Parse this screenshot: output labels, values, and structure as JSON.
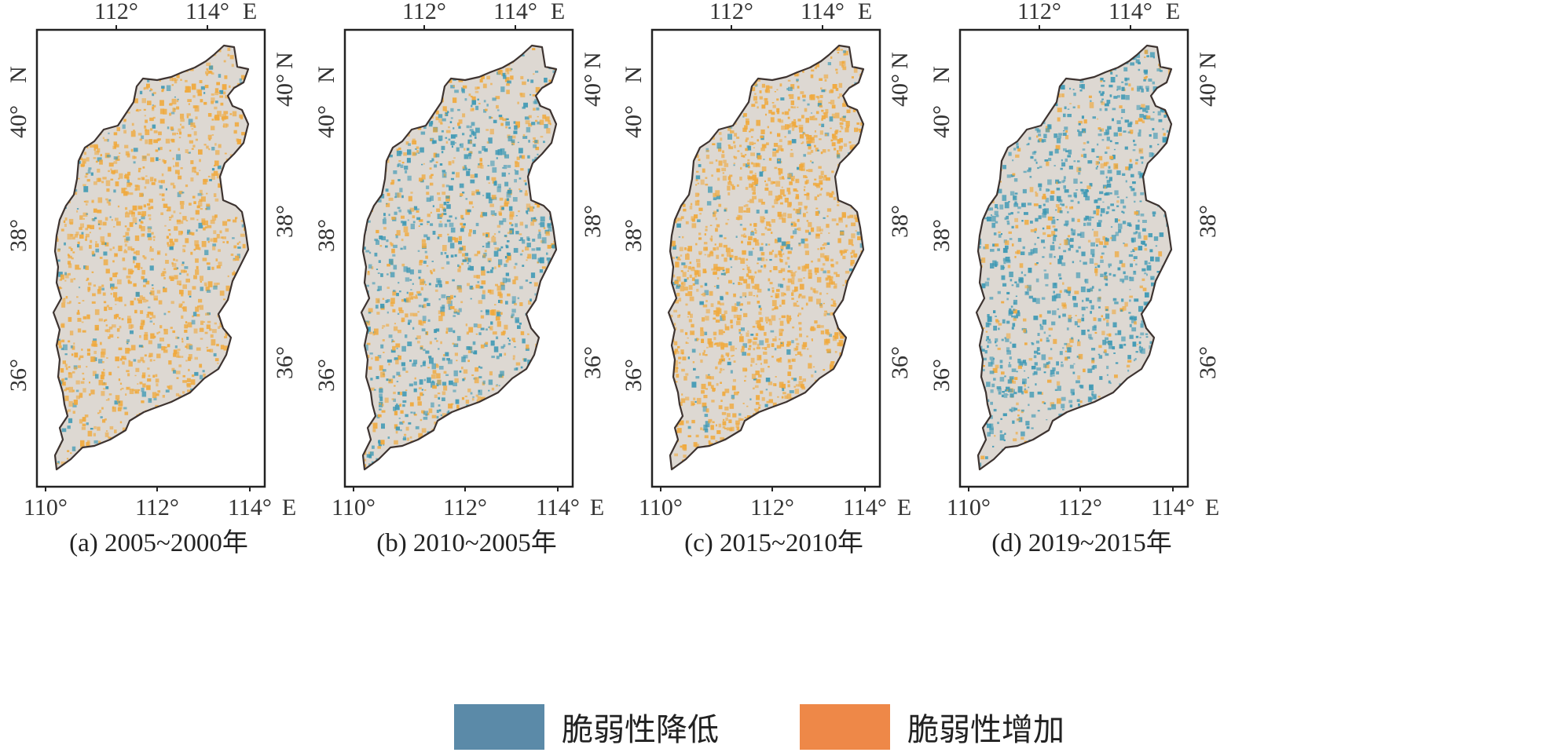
{
  "panels": [
    {
      "caption": "(a) 2005~2000年",
      "dominant": "increase",
      "increase_share": 0.62,
      "decrease_share": 0.1
    },
    {
      "caption": "(b) 2010~2005年",
      "dominant": "mixed",
      "increase_share": 0.32,
      "decrease_share": 0.4
    },
    {
      "caption": "(c) 2015~2010年",
      "dominant": "increase",
      "increase_share": 0.72,
      "decrease_share": 0.1
    },
    {
      "caption": "(d) 2019~2015年",
      "dominant": "decrease",
      "increase_share": 0.14,
      "decrease_share": 0.55
    }
  ],
  "axes": {
    "top_ticks": [
      "112°",
      "114°"
    ],
    "top_unit": "E",
    "bottom_ticks": [
      "110°",
      "112°",
      "114°"
    ],
    "bottom_unit": "E",
    "left_ticks": [
      "40°",
      "38°",
      "36°"
    ],
    "left_unit": "N",
    "right_ticks": [
      "40°",
      "38°",
      "36°"
    ],
    "right_unit": "N"
  },
  "legend": {
    "items": [
      {
        "label": "脆弱性降低",
        "color": "#5b8aa8"
      },
      {
        "label": "脆弱性增加",
        "color": "#ee8848"
      }
    ]
  },
  "colors": {
    "background_land": "#ddd8d2",
    "decrease_pixels": "#3c98b4",
    "increase_pixels": "#f0a93c",
    "outline": "#3d3330",
    "frame": "#222222"
  }
}
